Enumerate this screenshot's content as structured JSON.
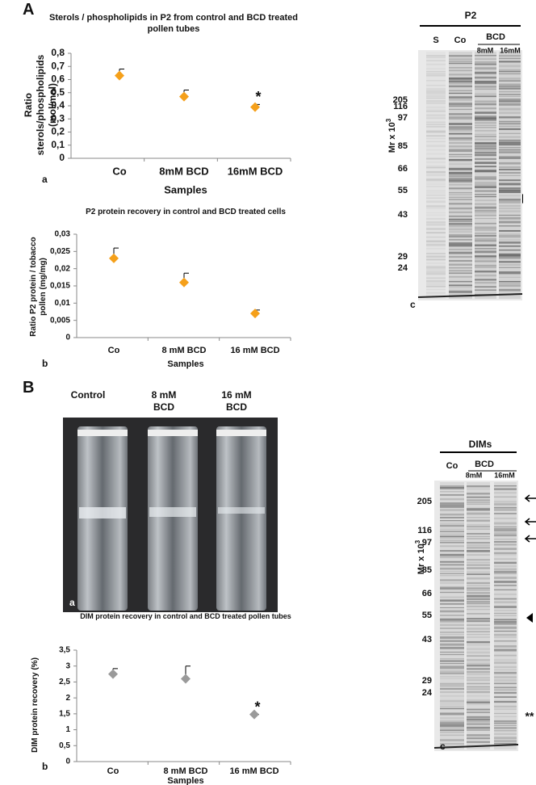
{
  "panel_labels": [
    "A",
    "B"
  ],
  "chart_data": [
    {
      "type": "point",
      "tag": "a",
      "title": "Sterols / phospholipids  in P2 from control and BCD treated pollen tubes",
      "y_label": "Ratio sterols/phospholipids (mol/mol)",
      "x_label": "Samples",
      "categories": [
        "Co",
        "8mM BCD",
        "16mM BCD"
      ],
      "values": [
        0.63,
        0.47,
        0.39
      ],
      "errors": [
        0.05,
        0.05,
        0.02
      ],
      "color": "#f5a01a",
      "ylim": [
        0,
        0.8
      ],
      "yticks": [
        0,
        {
          "value": 0.1,
          "label": "0,1"
        },
        {
          "value": 0.2,
          "label": "0,2"
        },
        {
          "value": 0.3,
          "label": "0,3"
        },
        {
          "value": 0.4,
          "label": "0,4"
        },
        {
          "value": 0.5,
          "label": "0,5"
        },
        {
          "value": 0.6,
          "label": "0,6"
        },
        {
          "value": 0.7,
          "label": "0,7"
        },
        {
          "value": 0.8,
          "label": "0,8"
        }
      ],
      "annotations": [
        {
          "text": "*",
          "category": 2
        }
      ]
    },
    {
      "type": "point",
      "tag": "b",
      "title": "P2 protein recovery in control and BCD treated cells",
      "y_label": "Ratio P2 protein / tobacco pollen (mg/mg)",
      "x_label": "Samples",
      "categories": [
        "Co",
        "8 mM  BCD",
        "16 mM  BCD"
      ],
      "values": [
        0.023,
        0.016,
        0.007
      ],
      "errors": [
        0.003,
        0.0027,
        0.001
      ],
      "color": "#f5a01a",
      "ylim": [
        0,
        0.03
      ],
      "yticks": [
        0,
        {
          "value": 0.005,
          "label": "0,005"
        },
        {
          "value": 0.01,
          "label": "0,01"
        },
        {
          "value": 0.015,
          "label": "0,015"
        },
        {
          "value": 0.02,
          "label": "0,02"
        },
        {
          "value": 0.025,
          "label": "0,025"
        },
        {
          "value": 0.03,
          "label": "0,03"
        }
      ],
      "annotations": []
    },
    {
      "type": "point",
      "tag": "b",
      "title": "DIM protein recovery in control and BCD treated pollen tubes",
      "y_label": "DIM protein recovery (%)",
      "x_label": "Samples",
      "categories": [
        "Co",
        "8 mM BCD",
        "16 mM BCD"
      ],
      "values": [
        2.75,
        2.6,
        1.48
      ],
      "errors": [
        0.17,
        0.4,
        0
      ],
      "color": "#9a9a9a",
      "ylim": [
        0,
        3.5
      ],
      "yticks": [
        0,
        {
          "value": 0.5,
          "label": "0,5"
        },
        1,
        {
          "value": 1.5,
          "label": "1,5"
        },
        2,
        {
          "value": 2.5,
          "label": "2,5"
        },
        3,
        {
          "value": 3.5,
          "label": "3,5"
        }
      ],
      "annotations": [
        {
          "text": "*",
          "category": 2
        }
      ]
    }
  ],
  "gels": [
    {
      "title": "P2",
      "lanes": [
        "S",
        "Co",
        "BCD"
      ],
      "sublanes": [
        "8mM",
        "16mM"
      ],
      "axis_label": "Mr x 10",
      "axis_sup": "3",
      "markers": [
        205,
        116,
        97,
        85,
        66,
        55,
        43,
        29,
        24
      ],
      "tag": "c",
      "side_marks": []
    },
    {
      "title": "DIMs",
      "lanes": [
        "Co",
        "BCD"
      ],
      "sublanes": [
        "8mM",
        "16mM"
      ],
      "axis_label": "Mr x 10",
      "axis_sup": "3",
      "markers": [
        205,
        116,
        97,
        85,
        66,
        55,
        43,
        29,
        24
      ],
      "tag": "c",
      "side_marks": [
        "**"
      ]
    }
  ],
  "photo": {
    "labels": [
      "Control",
      "8 mM BCD",
      "16 mM BCD"
    ],
    "tag": "a"
  }
}
